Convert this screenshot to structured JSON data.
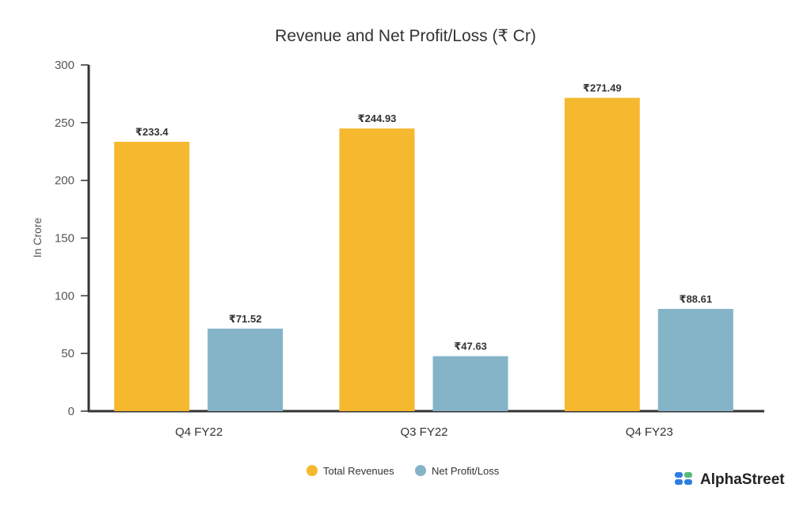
{
  "chart_data": {
    "type": "bar",
    "title": "Revenue and Net Profit/Loss (₹ Cr)",
    "xlabel": "",
    "ylabel": "In Crore",
    "ylim": [
      0,
      300
    ],
    "yticks": [
      0,
      50,
      100,
      150,
      200,
      250,
      300
    ],
    "categories": [
      "Q4 FY22",
      "Q3 FY22",
      "Q4 FY23"
    ],
    "series": [
      {
        "name": "Total Revenues",
        "color": "#F5B82E",
        "values": [
          233.4,
          244.93,
          271.49
        ],
        "labels": [
          "₹233.4",
          "₹244.93",
          "₹271.49"
        ]
      },
      {
        "name": "Net Profit/Loss",
        "color": "#85B4C8",
        "values": [
          71.52,
          47.63,
          88.61
        ],
        "labels": [
          "₹71.52",
          "₹47.63",
          "₹88.61"
        ]
      }
    ],
    "legend": "bottom-center",
    "grid": false
  },
  "brand": "AlphaStreet"
}
